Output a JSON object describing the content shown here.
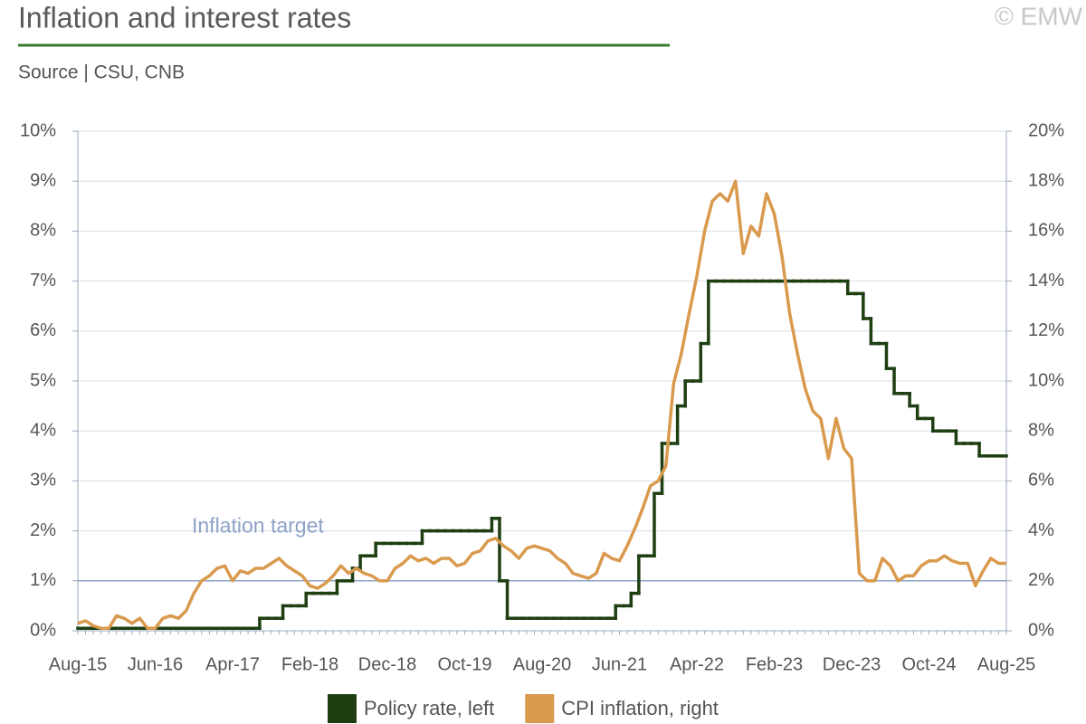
{
  "chart_data": {
    "type": "line",
    "title": "Inflation and interest rates",
    "subtitle": "Source | CSU, CNB",
    "credit": "© EMW",
    "categories": [
      "Aug-15",
      null,
      null,
      null,
      null,
      null,
      null,
      null,
      null,
      null,
      "Jun-16",
      null,
      null,
      null,
      null,
      null,
      null,
      null,
      null,
      null,
      "Apr-17",
      null,
      null,
      null,
      null,
      null,
      null,
      null,
      null,
      null,
      "Feb-18",
      null,
      null,
      null,
      null,
      null,
      null,
      null,
      null,
      null,
      "Dec-18",
      null,
      null,
      null,
      null,
      null,
      null,
      null,
      null,
      null,
      "Oct-19",
      null,
      null,
      null,
      null,
      null,
      null,
      null,
      null,
      null,
      "Aug-20",
      null,
      null,
      null,
      null,
      null,
      null,
      null,
      null,
      null,
      "Jun-21",
      null,
      null,
      null,
      null,
      null,
      null,
      null,
      null,
      null,
      "Apr-22",
      null,
      null,
      null,
      null,
      null,
      null,
      null,
      null,
      null,
      "Feb-23",
      null,
      null,
      null,
      null,
      null,
      null,
      null,
      null,
      null,
      "Dec-23",
      null,
      null,
      null,
      null,
      null,
      null,
      null,
      null,
      null,
      "Oct-24",
      null,
      null,
      null,
      null,
      null,
      null,
      null,
      null,
      null,
      "Aug-25"
    ],
    "ylim": [
      0,
      10
    ],
    "yticks": [
      {
        "value": 0,
        "label": "0%"
      },
      {
        "value": 1,
        "label": "1%"
      },
      {
        "value": 2,
        "label": "2%"
      },
      {
        "value": 3,
        "label": "3%"
      },
      {
        "value": 4,
        "label": "4%"
      },
      {
        "value": 5,
        "label": "5%"
      },
      {
        "value": 6,
        "label": "6%"
      },
      {
        "value": 7,
        "label": "7%"
      },
      {
        "value": 8,
        "label": "8%"
      },
      {
        "value": 9,
        "label": "9%"
      },
      {
        "value": 10,
        "label": "10%"
      }
    ],
    "y2lim": [
      0,
      20
    ],
    "y2ticks": [
      {
        "value": 0,
        "label": "0%"
      },
      {
        "value": 2,
        "label": "2%"
      },
      {
        "value": 4,
        "label": "4%"
      },
      {
        "value": 6,
        "label": "6%"
      },
      {
        "value": 8,
        "label": "8%"
      },
      {
        "value": 10,
        "label": "10%"
      },
      {
        "value": 12,
        "label": "12%"
      },
      {
        "value": 14,
        "label": "14%"
      },
      {
        "value": 16,
        "label": "16%"
      },
      {
        "value": 18,
        "label": "18%"
      },
      {
        "value": 20,
        "label": "20%"
      }
    ],
    "grid": true,
    "legend": "bottom",
    "target": {
      "label": "Inflation target",
      "value": 2,
      "axis": "y2",
      "color": "#8da2c6"
    },
    "series": [
      {
        "name": "Policy rate, left",
        "color": "#1e3f12",
        "axis": "y",
        "step": true,
        "values": [
          0.05,
          0.05,
          0.05,
          0.05,
          0.05,
          0.05,
          0.05,
          0.05,
          0.05,
          0.05,
          0.05,
          0.05,
          0.05,
          0.05,
          0.05,
          0.05,
          0.05,
          0.05,
          0.05,
          0.05,
          0.05,
          0.05,
          0.05,
          0.05,
          0.25,
          0.25,
          0.25,
          0.5,
          0.5,
          0.5,
          0.75,
          0.75,
          0.75,
          0.75,
          1.0,
          1.0,
          1.25,
          1.5,
          1.5,
          1.75,
          1.75,
          1.75,
          1.75,
          1.75,
          1.75,
          2.0,
          2.0,
          2.0,
          2.0,
          2.0,
          2.0,
          2.0,
          2.0,
          2.0,
          2.25,
          1.0,
          0.25,
          0.25,
          0.25,
          0.25,
          0.25,
          0.25,
          0.25,
          0.25,
          0.25,
          0.25,
          0.25,
          0.25,
          0.25,
          0.25,
          0.5,
          0.5,
          0.75,
          1.5,
          1.5,
          2.75,
          3.75,
          3.75,
          4.5,
          5.0,
          5.0,
          5.75,
          7.0,
          7.0,
          7.0,
          7.0,
          7.0,
          7.0,
          7.0,
          7.0,
          7.0,
          7.0,
          7.0,
          7.0,
          7.0,
          7.0,
          7.0,
          7.0,
          7.0,
          7.0,
          6.75,
          6.75,
          6.25,
          5.75,
          5.75,
          5.25,
          4.75,
          4.75,
          4.5,
          4.25,
          4.25,
          4.0,
          4.0,
          4.0,
          3.75,
          3.75,
          3.75,
          3.5,
          3.5,
          3.5,
          3.5
        ]
      },
      {
        "name": "CPI inflation, right",
        "color": "#d99a4e",
        "axis": "y2",
        "values": [
          0.3,
          0.4,
          0.2,
          0.1,
          0.1,
          0.6,
          0.5,
          0.3,
          0.5,
          0.1,
          0.1,
          0.5,
          0.6,
          0.5,
          0.8,
          1.5,
          2.0,
          2.2,
          2.5,
          2.6,
          2.0,
          2.4,
          2.3,
          2.5,
          2.5,
          2.7,
          2.9,
          2.6,
          2.4,
          2.2,
          1.8,
          1.7,
          1.9,
          2.2,
          2.6,
          2.3,
          2.5,
          2.3,
          2.2,
          2.0,
          2.0,
          2.5,
          2.7,
          3.0,
          2.8,
          2.9,
          2.7,
          2.9,
          2.9,
          2.6,
          2.7,
          3.1,
          3.2,
          3.6,
          3.7,
          3.4,
          3.2,
          2.9,
          3.3,
          3.4,
          3.3,
          3.2,
          2.9,
          2.7,
          2.3,
          2.2,
          2.1,
          2.3,
          3.1,
          2.9,
          2.8,
          3.4,
          4.1,
          4.9,
          5.8,
          6.0,
          6.6,
          9.9,
          11.1,
          12.7,
          14.2,
          16.0,
          17.2,
          17.5,
          17.2,
          18.0,
          15.1,
          16.2,
          15.8,
          17.5,
          16.7,
          15.0,
          12.7,
          11.1,
          9.7,
          8.8,
          8.5,
          6.9,
          8.5,
          7.3,
          6.9,
          2.3,
          2.0,
          2.0,
          2.9,
          2.6,
          2.0,
          2.2,
          2.2,
          2.6,
          2.8,
          2.8,
          3.0,
          2.8,
          2.7,
          2.7,
          1.8,
          2.4,
          2.9,
          2.7,
          2.7
        ]
      }
    ]
  }
}
